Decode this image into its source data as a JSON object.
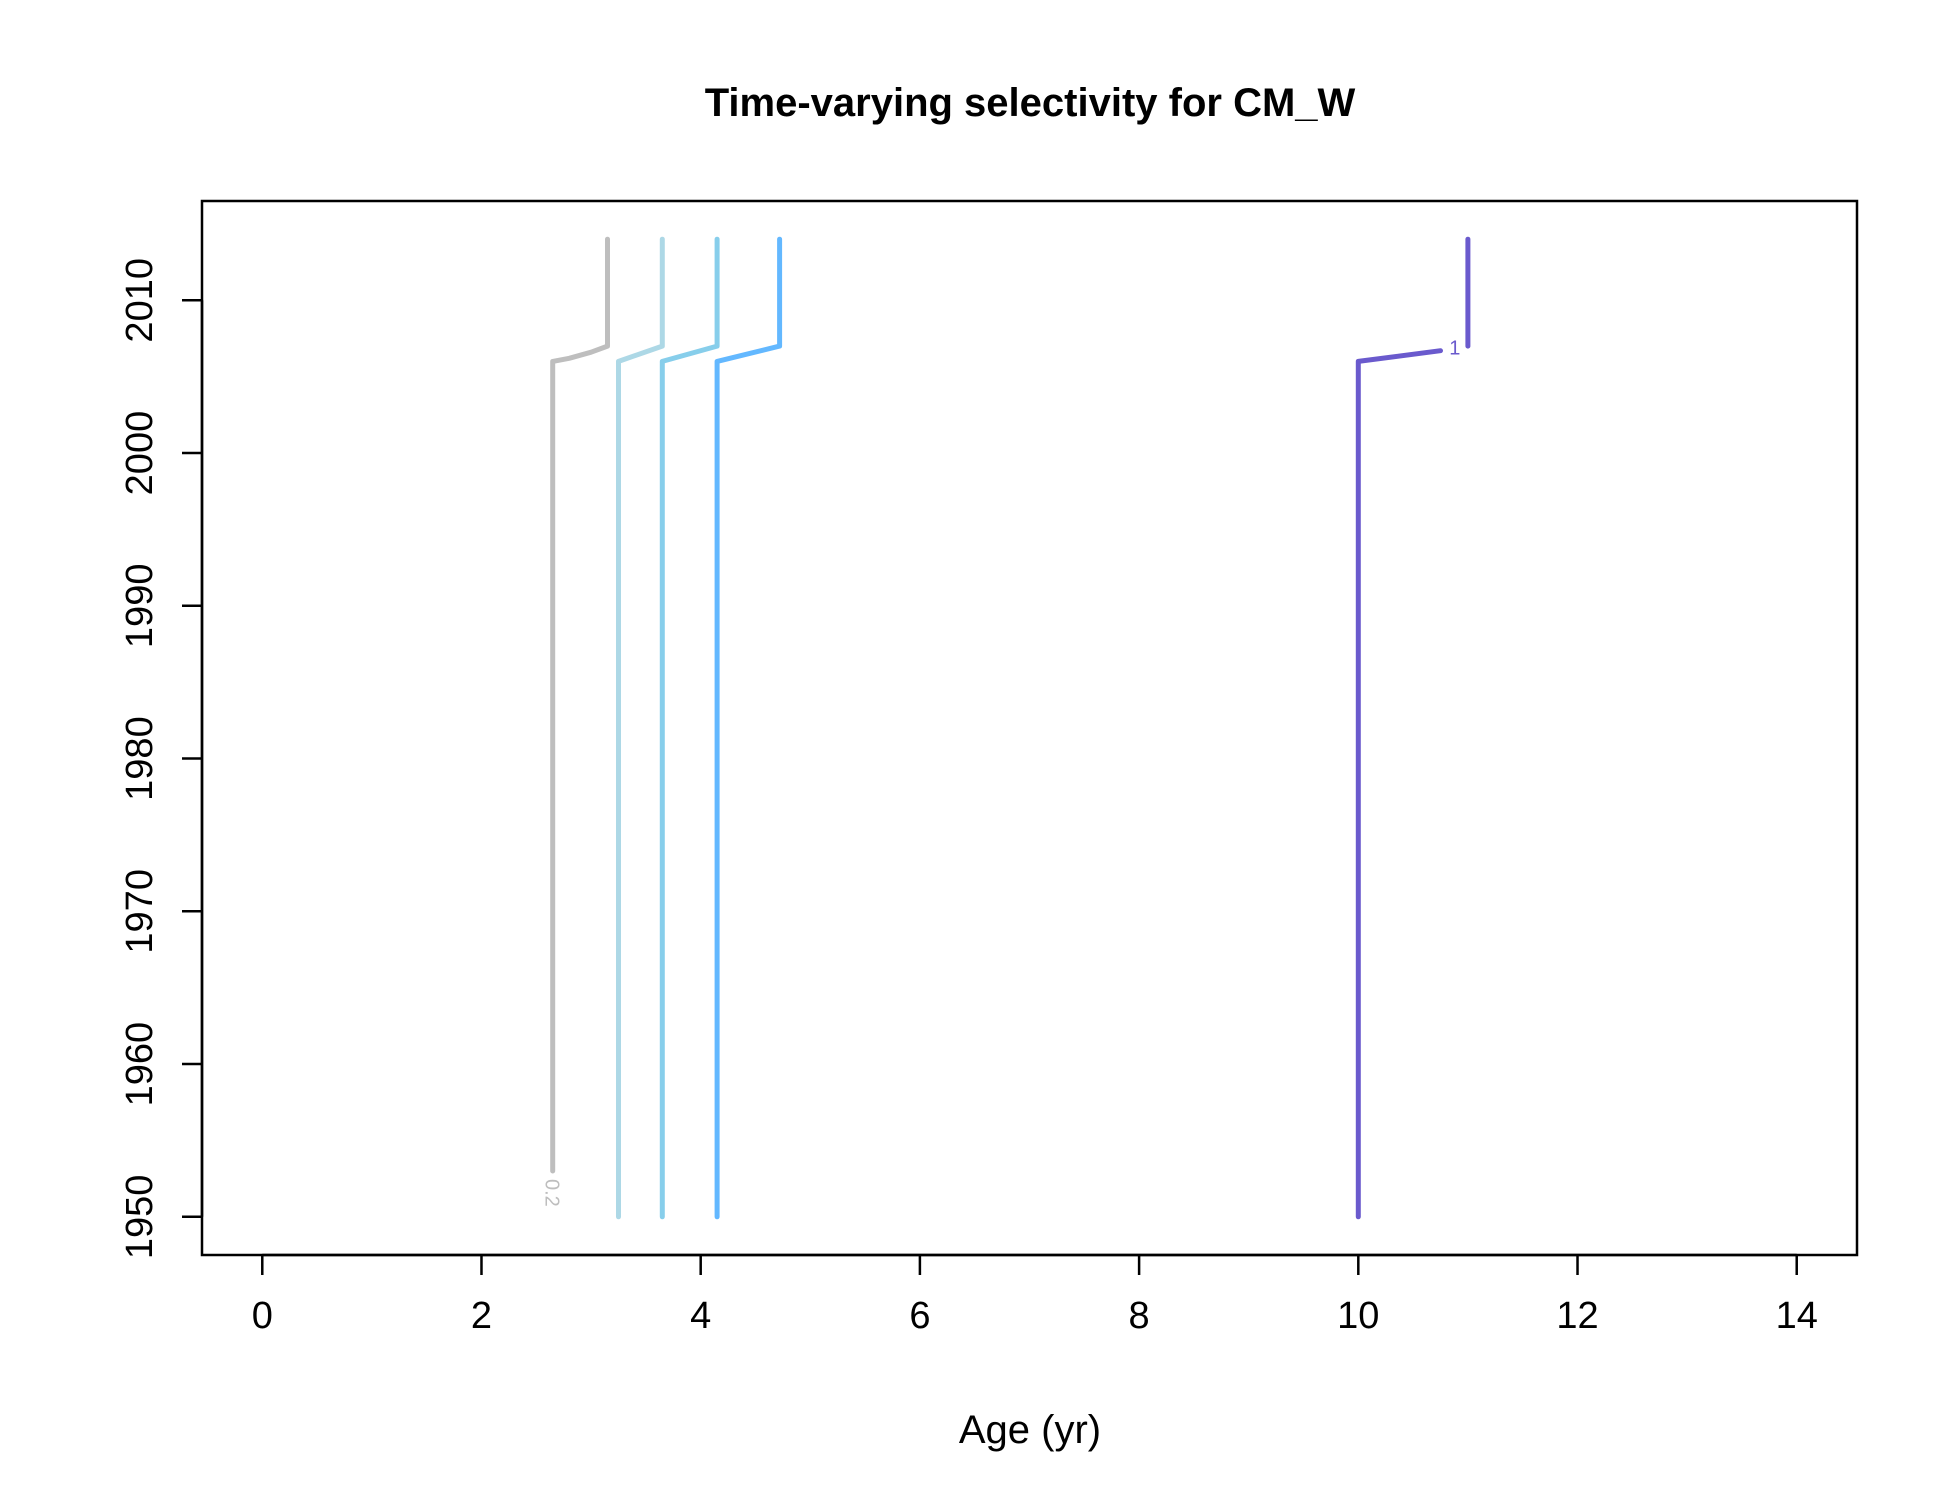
{
  "chart_data": {
    "type": "line",
    "title": "Time-varying selectivity for CM_W",
    "xlabel": "Age (yr)",
    "ylabel": "",
    "xlim": [
      -0.55,
      14.55
    ],
    "ylim": [
      1947.5,
      2016.5
    ],
    "x_ticks": [
      0,
      2,
      4,
      6,
      8,
      10,
      12,
      14
    ],
    "y_ticks": [
      1950,
      1960,
      1970,
      1980,
      1990,
      2000,
      2010
    ],
    "grid": false,
    "legend": "none",
    "series": [
      {
        "color": "#bebebe",
        "label": "0.2",
        "points": [
          [
            2.65,
            1953
          ],
          [
            2.65,
            2006
          ],
          [
            2.8,
            2006.2
          ],
          [
            3.0,
            2006.6
          ],
          [
            3.15,
            2007
          ],
          [
            3.15,
            2014
          ]
        ]
      },
      {
        "color": "#add8e6",
        "points": [
          [
            3.25,
            1950
          ],
          [
            3.25,
            2006
          ],
          [
            3.65,
            2007
          ],
          [
            3.65,
            2014
          ]
        ]
      },
      {
        "color": "#87ceeb",
        "points": [
          [
            3.65,
            1950
          ],
          [
            3.65,
            2006
          ],
          [
            4.15,
            2007
          ],
          [
            4.15,
            2014
          ]
        ]
      },
      {
        "color": "#63b8ff",
        "points": [
          [
            4.15,
            1950
          ],
          [
            4.15,
            2006
          ],
          [
            4.72,
            2007
          ],
          [
            4.72,
            2014
          ]
        ]
      },
      {
        "color": "#6a5acd",
        "label": "1",
        "points": [
          [
            10.0,
            1950
          ],
          [
            10.0,
            2006
          ],
          [
            10.75,
            2006.7
          ]
        ],
        "points2": [
          [
            11.0,
            2007
          ],
          [
            11.0,
            2014
          ]
        ]
      }
    ]
  }
}
